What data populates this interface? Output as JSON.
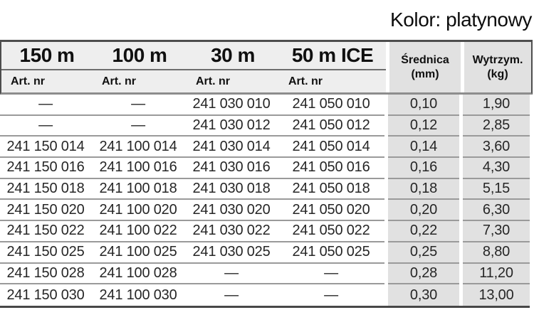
{
  "page_title": "Kolor: platynowy",
  "colors": {
    "spec_column_bg": "#e1e1e1",
    "header_band_bg": "#eeeeee",
    "separator_line": "#9a9a9a",
    "border_dark": "#4d4d4d"
  },
  "table": {
    "columns": [
      {
        "label": "150 m",
        "sublabel": "Art. nr"
      },
      {
        "label": "100 m",
        "sublabel": "Art. nr"
      },
      {
        "label": "30 m",
        "sublabel": "Art. nr"
      },
      {
        "label": "50 m ICE",
        "sublabel": "Art. nr"
      }
    ],
    "spec_columns": [
      {
        "line1": "Średnica",
        "line2": "(mm)"
      },
      {
        "line1": "Wytrzym.",
        "line2": "(kg)"
      }
    ],
    "rows": [
      {
        "art_150m": "—",
        "art_100m": "—",
        "art_30m": "241 030 010",
        "art_50m_ice": "241 050 010",
        "srednica_mm": "0,10",
        "wytrzym_kg": "1,90"
      },
      {
        "art_150m": "—",
        "art_100m": "—",
        "art_30m": "241 030 012",
        "art_50m_ice": "241 050 012",
        "srednica_mm": "0,12",
        "wytrzym_kg": "2,85"
      },
      {
        "art_150m": "241 150 014",
        "art_100m": "241 100 014",
        "art_30m": "241 030 014",
        "art_50m_ice": "241 050 014",
        "srednica_mm": "0,14",
        "wytrzym_kg": "3,60"
      },
      {
        "art_150m": "241 150 016",
        "art_100m": "241 100 016",
        "art_30m": "241 030 016",
        "art_50m_ice": "241 050 016",
        "srednica_mm": "0,16",
        "wytrzym_kg": "4,30"
      },
      {
        "art_150m": "241 150 018",
        "art_100m": "241 100 018",
        "art_30m": "241 030 018",
        "art_50m_ice": "241 050 018",
        "srednica_mm": "0,18",
        "wytrzym_kg": "5,15"
      },
      {
        "art_150m": "241 150 020",
        "art_100m": "241 100 020",
        "art_30m": "241 030 020",
        "art_50m_ice": "241 050 020",
        "srednica_mm": "0,20",
        "wytrzym_kg": "6,30"
      },
      {
        "art_150m": "241 150 022",
        "art_100m": "241 100 022",
        "art_30m": "241 030 022",
        "art_50m_ice": "241 050 022",
        "srednica_mm": "0,22",
        "wytrzym_kg": "7,30"
      },
      {
        "art_150m": "241 150 025",
        "art_100m": "241 100 025",
        "art_30m": "241 030 025",
        "art_50m_ice": "241 050 025",
        "srednica_mm": "0,25",
        "wytrzym_kg": "8,80"
      },
      {
        "art_150m": "241 150 028",
        "art_100m": "241 100 028",
        "art_30m": "—",
        "art_50m_ice": "—",
        "srednica_mm": "0,28",
        "wytrzym_kg": "11,20"
      },
      {
        "art_150m": "241 150 030",
        "art_100m": "241 100 030",
        "art_30m": "—",
        "art_50m_ice": "—",
        "srednica_mm": "0,30",
        "wytrzym_kg": "13,00"
      }
    ]
  }
}
